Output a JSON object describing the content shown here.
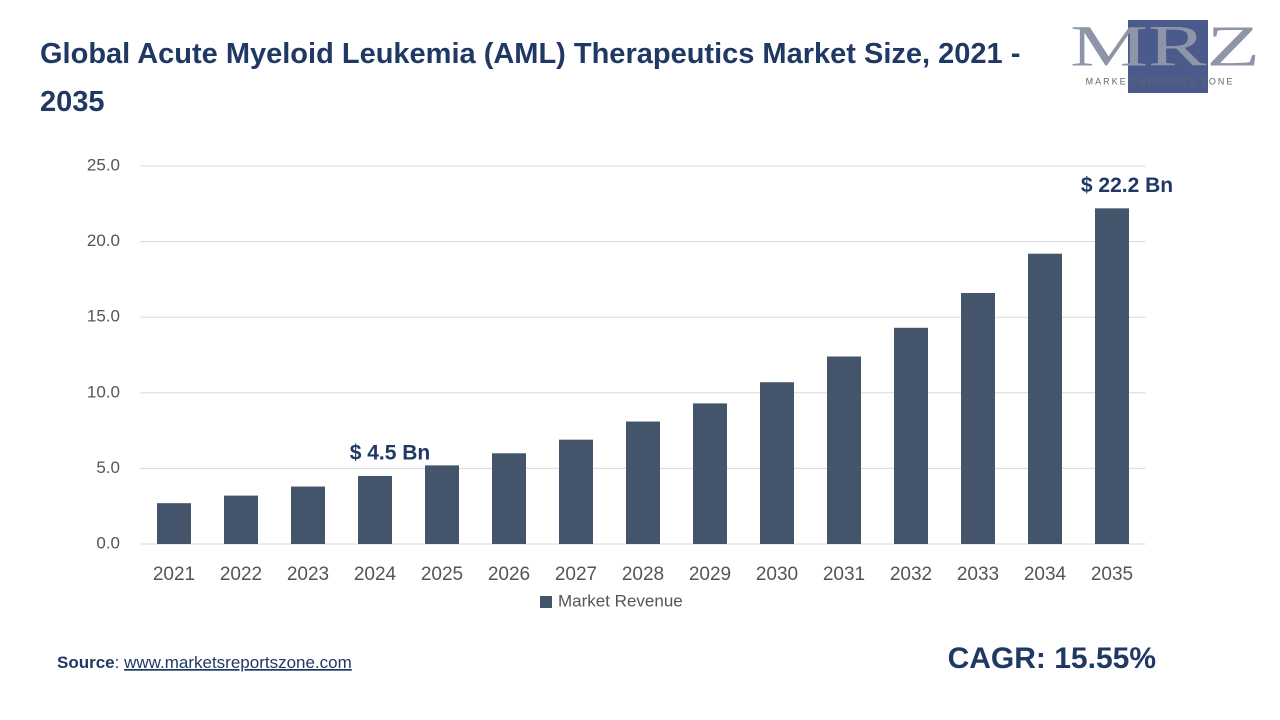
{
  "chart_data": {
    "type": "bar",
    "title": "Global Acute Myeloid Leukemia (AML) Therapeutics Market Size, 2021 - 2035",
    "categories": [
      "2021",
      "2022",
      "2023",
      "2024",
      "2025",
      "2026",
      "2027",
      "2028",
      "2029",
      "2030",
      "2031",
      "2032",
      "2033",
      "2034",
      "2035"
    ],
    "series": [
      {
        "name": "Market Revenue",
        "color": "#44546a",
        "values": [
          2.7,
          3.2,
          3.8,
          4.5,
          5.2,
          6.0,
          6.9,
          8.1,
          9.3,
          10.7,
          12.4,
          14.3,
          16.6,
          19.2,
          22.2
        ],
        "value_labels": [
          null,
          null,
          null,
          "$ 4.5 Bn",
          null,
          null,
          null,
          null,
          null,
          null,
          null,
          null,
          null,
          null,
          "$ 22.2 Bn"
        ]
      }
    ],
    "ylim": [
      0,
      25
    ],
    "yticks": [
      {
        "value": 0,
        "label": "0.0"
      },
      {
        "value": 5,
        "label": "5.0"
      },
      {
        "value": 10,
        "label": "10.0"
      },
      {
        "value": 15,
        "label": "15.0"
      },
      {
        "value": 20,
        "label": "20.0"
      },
      {
        "value": 25,
        "label": "25.0"
      }
    ],
    "grid": true,
    "legend": "bottom"
  },
  "source": {
    "label": "Source",
    "separator": ": ",
    "url": "www.marketsreportszone.com"
  },
  "cagr": "CAGR: 15.55%",
  "logo": {
    "letters": "MRZ",
    "tagline": "MARKET REPORTS ZONE"
  }
}
